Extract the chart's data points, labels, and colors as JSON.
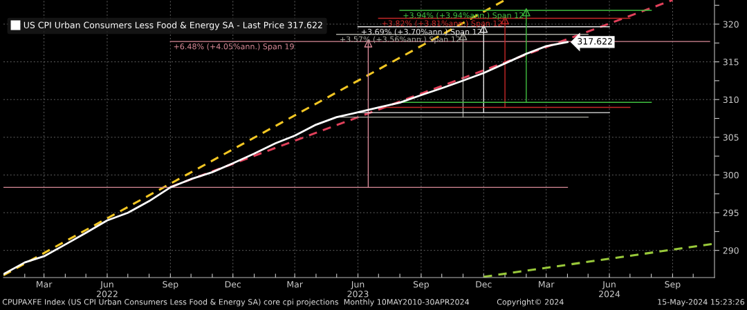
{
  "chart_data": {
    "type": "line",
    "legend": "top left",
    "grid": true,
    "xlim": [
      "2022-01-01",
      "2024-11-01"
    ],
    "ylim": [
      286.4,
      323.2
    ],
    "xticks": [
      {
        "value": "2022-02-01",
        "label": null
      },
      {
        "value": "2022-03-01",
        "label": "Mar"
      },
      {
        "value": "2022-04-01",
        "label": null
      },
      {
        "value": "2022-05-01",
        "label": null
      },
      {
        "value": "2022-06-01",
        "label": "Jun\n2022"
      },
      {
        "value": "2022-07-01",
        "label": null
      },
      {
        "value": "2022-08-01",
        "label": null
      },
      {
        "value": "2022-09-01",
        "label": "Sep"
      },
      {
        "value": "2022-10-01",
        "label": null
      },
      {
        "value": "2022-11-01",
        "label": null
      },
      {
        "value": "2022-12-01",
        "label": "Dec"
      },
      {
        "value": "2023-01-01",
        "label": null
      },
      {
        "value": "2023-02-01",
        "label": null
      },
      {
        "value": "2023-03-01",
        "label": "Mar"
      },
      {
        "value": "2023-04-01",
        "label": null
      },
      {
        "value": "2023-05-01",
        "label": null
      },
      {
        "value": "2023-06-01",
        "label": "Jun\n2023"
      },
      {
        "value": "2023-07-01",
        "label": null
      },
      {
        "value": "2023-08-01",
        "label": null
      },
      {
        "value": "2023-09-01",
        "label": "Sep"
      },
      {
        "value": "2023-10-01",
        "label": null
      },
      {
        "value": "2023-11-01",
        "label": null
      },
      {
        "value": "2023-12-01",
        "label": "Dec"
      },
      {
        "value": "2024-01-01",
        "label": null
      },
      {
        "value": "2024-02-01",
        "label": null
      },
      {
        "value": "2024-03-01",
        "label": "Mar"
      },
      {
        "value": "2024-04-01",
        "label": null
      },
      {
        "value": "2024-05-01",
        "label": null
      },
      {
        "value": "2024-06-01",
        "label": "Jun\n2024"
      },
      {
        "value": "2024-07-01",
        "label": null
      },
      {
        "value": "2024-08-01",
        "label": null
      },
      {
        "value": "2024-09-01",
        "label": "Sep"
      },
      {
        "value": "2024-10-01",
        "label": null
      }
    ],
    "yticks": [
      290,
      {
        "value": 292.5,
        "label": null
      },
      295,
      {
        "value": 297.5,
        "label": null
      },
      300,
      {
        "value": 302.5,
        "label": null
      },
      305,
      {
        "value": 307.5,
        "label": null
      },
      310,
      {
        "value": 312.5,
        "label": null
      },
      315,
      {
        "value": 317.5,
        "label": null
      },
      320,
      {
        "value": 322.5,
        "label": null
      }
    ],
    "series": [
      {
        "name": "US CPI Urban Consumers Less Food & Energy SA - Last Price 317.622",
        "color": "#ffffff",
        "line_style": "solid",
        "x": [
          "2022-01",
          "2022-02",
          "2022-03",
          "2022-04",
          "2022-05",
          "2022-06",
          "2022-07",
          "2022-08",
          "2022-09",
          "2022-10",
          "2022-11",
          "2022-12",
          "2023-01",
          "2023-02",
          "2023-03",
          "2023-04",
          "2023-05",
          "2023-06",
          "2023-07",
          "2023-08",
          "2023-09",
          "2023-10",
          "2023-11",
          "2023-12",
          "2024-01",
          "2024-02",
          "2024-03",
          "2024-04"
        ],
        "values": [
          286.85,
          288.4,
          289.22,
          290.78,
          292.33,
          293.97,
          294.98,
          296.53,
          298.36,
          299.45,
          300.37,
          301.55,
          302.83,
          304.2,
          305.21,
          306.67,
          307.67,
          308.31,
          308.95,
          309.59,
          310.59,
          311.51,
          312.51,
          313.52,
          314.79,
          316.07,
          317.08,
          317.622
        ],
        "value_labels": [
          null,
          null,
          null,
          null,
          null,
          null,
          null,
          null,
          null,
          null,
          null,
          null,
          null,
          null,
          null,
          null,
          null,
          null,
          null,
          null,
          null,
          null,
          null,
          null,
          null,
          null,
          null,
          "317.622"
        ]
      },
      {
        "color": "#f2c623",
        "line_style": "dashed",
        "x": [
          "2022-01-01",
          "2024-01-01"
        ],
        "values": [
          286.7,
          323.2
        ]
      },
      {
        "color": "#e0405a",
        "line_style": "dashed",
        "x": [
          "2022-09-01",
          "2024-09-01"
        ],
        "values": [
          298.4,
          323.2
        ]
      },
      {
        "color": "#98c83a",
        "line_style": "dashed",
        "x": [
          "2023-12-01",
          "2024-11-01"
        ],
        "values": [
          286.5,
          290.9
        ]
      },
      {
        "color": "#d98a98",
        "line_style": "solid",
        "x": [
          "2022-01-01",
          "2024-04-01"
        ],
        "values": [
          298.36,
          298.36
        ]
      },
      {
        "color": "#d98a98",
        "line_style": "solid",
        "x": [
          "2023-06-16",
          "2023-06-16"
        ],
        "values": [
          298.36,
          317.7
        ]
      },
      {
        "color": "#d98a98",
        "line_style": "solid",
        "x": [
          "2022-09-01",
          "2024-10-25"
        ],
        "values": [
          317.7,
          317.7
        ]
      },
      {
        "color": "#a8a8a0",
        "line_style": "solid",
        "x": [
          "2023-05-01",
          "2024-05-01"
        ],
        "values": [
          307.67,
          307.67
        ]
      },
      {
        "color": "#a8a8a0",
        "line_style": "solid",
        "x": [
          "2023-11-01",
          "2023-11-01"
        ],
        "values": [
          307.67,
          318.65
        ]
      },
      {
        "color": "#a8a8a0",
        "line_style": "solid",
        "x": [
          "2023-05-01",
          "2024-05-01"
        ],
        "values": [
          318.65,
          318.65
        ]
      },
      {
        "color": "#e8e8e8",
        "line_style": "solid",
        "x": [
          "2023-06-01",
          "2024-06-01"
        ],
        "values": [
          308.27,
          308.27
        ]
      },
      {
        "color": "#e8e8e8",
        "line_style": "solid",
        "x": [
          "2023-12-01",
          "2023-12-01"
        ],
        "values": [
          308.27,
          319.65
        ]
      },
      {
        "color": "#e8e8e8",
        "line_style": "solid",
        "x": [
          "2023-06-01",
          "2024-06-01"
        ],
        "values": [
          319.65,
          319.65
        ]
      },
      {
        "color": "#c82828",
        "line_style": "solid",
        "x": [
          "2023-07-01",
          "2024-07-01"
        ],
        "values": [
          308.97,
          308.97
        ]
      },
      {
        "color": "#c82828",
        "line_style": "solid",
        "x": [
          "2024-01-01",
          "2024-01-01"
        ],
        "values": [
          308.97,
          320.77
        ]
      },
      {
        "color": "#c82828",
        "line_style": "solid",
        "x": [
          "2023-07-01",
          "2024-07-01"
        ],
        "values": [
          320.77,
          320.77
        ]
      },
      {
        "color": "#40c040",
        "line_style": "solid",
        "x": [
          "2023-08-01",
          "2024-08-01"
        ],
        "values": [
          309.63,
          309.63
        ]
      },
      {
        "color": "#40c040",
        "line_style": "solid",
        "x": [
          "2024-02-01",
          "2024-02-01"
        ],
        "values": [
          309.63,
          321.83
        ]
      },
      {
        "color": "#40c040",
        "line_style": "solid",
        "x": [
          "2023-08-01",
          "2024-08-01"
        ],
        "values": [
          321.83,
          321.83
        ]
      }
    ],
    "annotations": [
      {
        "text": "+6.48% (+4.05%ann.) Span 19",
        "x": "2022-09-01",
        "y": 317.7
      },
      {
        "text": "+3.57% (+3.56%ann.) Span 12",
        "x": "2023-05-01",
        "y": 318.65
      },
      {
        "text": "+3.69% (+3.70%ann.) Span 12",
        "x": "2023-06-01",
        "y": 319.65
      },
      {
        "text": "+3.82% (+3.81%ann.) Span 12",
        "x": "2023-07-01",
        "y": 320.77
      },
      {
        "text": "+3.94% (+3.94%ann.) Span 12",
        "x": "2023-08-01",
        "y": 321.83
      },
      "CPUPAXFE Index (US CPI Urban Consumers Less Food & Energy SA) core cpi projections  Monthly 10MAY2010-30APR2024",
      "Copyright© 2024",
      "15-May-2024 15:23:26"
    ]
  }
}
